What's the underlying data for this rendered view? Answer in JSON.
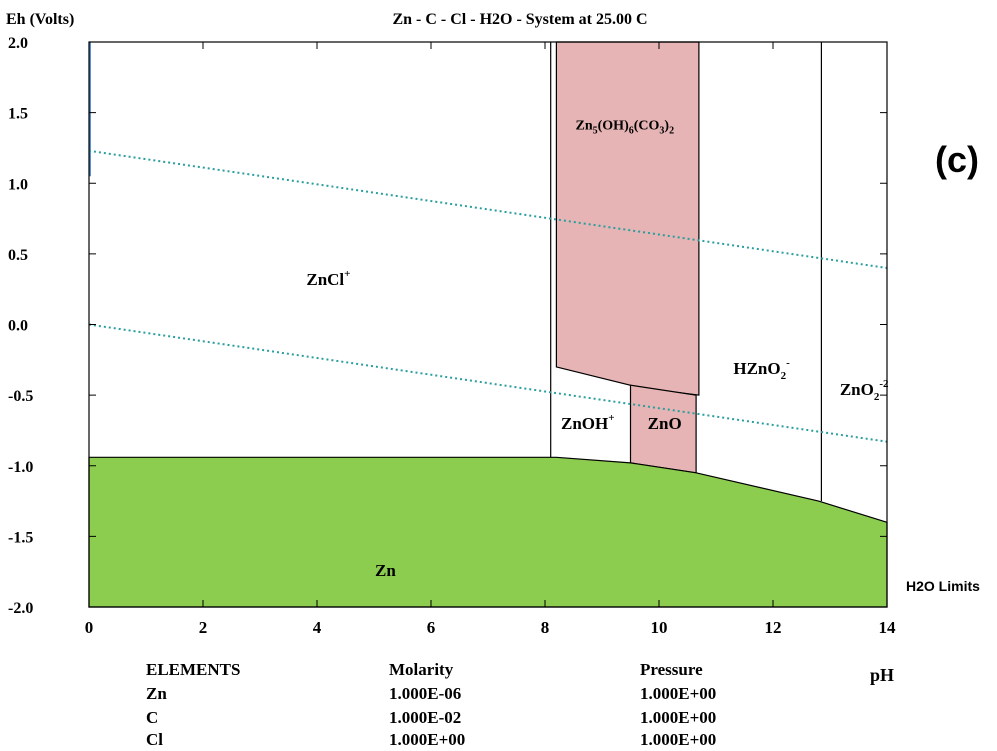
{
  "chart_data": {
    "type": "area",
    "title": "Zn - C - Cl - H2O - System at 25.00 C",
    "ylabel": "Eh (Volts)",
    "xlabel": "pH",
    "panel_label": "(c)",
    "h2o_label": "H2O Limits",
    "xlim": [
      0,
      14
    ],
    "ylim": [
      -2.0,
      2.0
    ],
    "xticks": [
      0,
      2,
      4,
      6,
      8,
      10,
      12,
      14
    ],
    "yticks": [
      2.0,
      1.5,
      1.0,
      0.5,
      0.0,
      -0.5,
      -1.0,
      -1.5,
      -2.0
    ],
    "ytick_labels": [
      "2.0",
      "1.5",
      "1.0",
      "0.5",
      "0.0",
      "-0.5",
      "-1.0",
      "-1.5",
      "-2.0"
    ],
    "grid": false,
    "colors": {
      "zn_solid": "#8ccd4f",
      "zn_carbonate": "#e6b4b4",
      "zno": "#e6b4b4",
      "water_line": "#2a9d9d",
      "boundary": "#000000"
    },
    "regions": [
      {
        "name": "ZnCl+",
        "label": "ZnCl",
        "sup": "+",
        "solid": false,
        "label_at": [
          4.2,
          0.28
        ]
      },
      {
        "name": "Zn5(OH)6(CO3)2",
        "label": "Zn5(OH)6(CO3)2",
        "solid": true,
        "label_at": [
          9.4,
          1.38
        ],
        "polygon": [
          [
            8.2,
            2.0
          ],
          [
            10.7,
            2.0
          ],
          [
            10.7,
            -0.5
          ],
          [
            9.7,
            -0.45
          ],
          [
            8.2,
            -0.3
          ]
        ]
      },
      {
        "name": "ZnO",
        "label": "ZnO",
        "solid": true,
        "label_at": [
          10.1,
          -0.74
        ],
        "polygon": [
          [
            9.5,
            -0.43
          ],
          [
            10.65,
            -0.5
          ],
          [
            10.65,
            -1.05
          ],
          [
            9.5,
            -0.98
          ]
        ]
      },
      {
        "name": "ZnOH+",
        "label": "ZnOH",
        "sup": "+",
        "solid": false,
        "label_at": [
          8.75,
          -0.74
        ]
      },
      {
        "name": "HZnO2-",
        "label": "HZnO",
        "sub": "2",
        "sup": "-",
        "solid": false,
        "label_at": [
          11.8,
          -0.35
        ]
      },
      {
        "name": "ZnO2-2",
        "label": "ZnO",
        "sub": "2",
        "sup": "-2",
        "solid": false,
        "label_at": [
          13.6,
          -0.5
        ]
      },
      {
        "name": "Zn",
        "label": "Zn",
        "solid": true,
        "label_at": [
          5.2,
          -1.78
        ],
        "polygon": [
          [
            0,
            -0.94
          ],
          [
            8.2,
            -0.94
          ],
          [
            9.5,
            -0.98
          ],
          [
            10.65,
            -1.05
          ],
          [
            12.8,
            -1.25
          ],
          [
            14,
            -1.4
          ],
          [
            14,
            -2.0
          ],
          [
            0,
            -2.0
          ]
        ]
      }
    ],
    "boundaries": [
      [
        [
          8.1,
          2.0
        ],
        [
          8.1,
          -0.94
        ]
      ],
      [
        [
          12.85,
          2.0
        ],
        [
          12.85,
          -1.25
        ]
      ],
      [
        [
          0.02,
          2.0
        ],
        [
          0.02,
          1.05
        ]
      ]
    ],
    "water_limits": [
      [
        [
          0,
          1.23
        ],
        [
          14,
          0.4
        ]
      ],
      [
        [
          0,
          0.0
        ],
        [
          14,
          -0.83
        ]
      ]
    ],
    "table": {
      "headers": [
        "ELEMENTS",
        "Molarity",
        "Pressure"
      ],
      "rows": [
        [
          "Zn",
          "1.000E-06",
          "1.000E+00"
        ],
        [
          "C",
          "1.000E-02",
          "1.000E+00"
        ],
        [
          "Cl",
          "1.000E+00",
          "1.000E+00"
        ]
      ]
    }
  }
}
